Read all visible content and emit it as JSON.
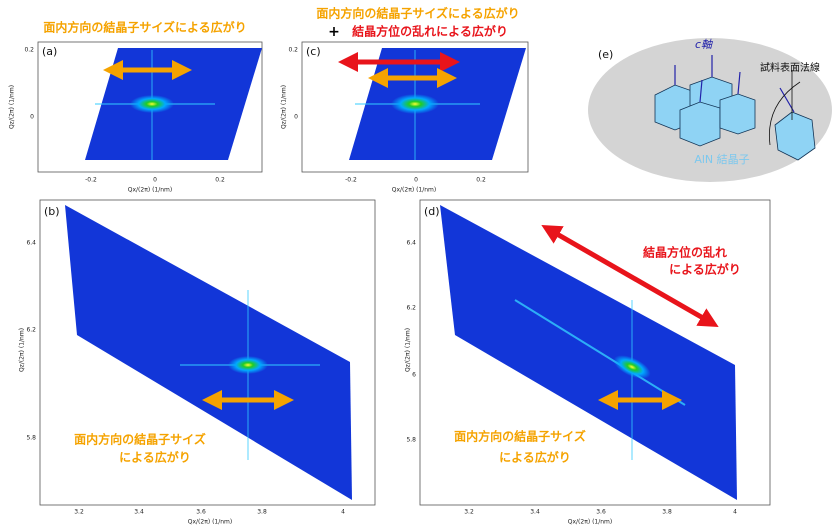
{
  "panel_a": {
    "title": "面内方向の結晶子サイズによる広がり",
    "label": "(a)",
    "xticks": [
      "-0.2",
      "0",
      "0.2"
    ],
    "yticks": [
      "0.2",
      "0"
    ],
    "xlabel": "Qx/(2π) (1/nm)",
    "ylabel": "Qz/(2π) (1/nm)"
  },
  "panel_c": {
    "title": "面内方向の結晶子サイズによる広がり",
    "plus": "+",
    "title2": "結晶方位の乱れによる広がり",
    "label": "(c)",
    "xticks": [
      "-0.2",
      "0",
      "0.2"
    ],
    "yticks": [
      "0.2",
      "0"
    ],
    "xlabel": "Qx/(2π) (1/nm)",
    "ylabel": "Qz/(2π) (1/nm)"
  },
  "panel_e": {
    "label": "(e)",
    "axis": "c軸",
    "normal": "試料表面法線",
    "crystal": "AlN 結晶子"
  },
  "panel_b": {
    "label": "(b)",
    "note_1": "面内方向の結晶子サイズ",
    "note_2": "による広がり",
    "xticks": [
      "3.2",
      "3.4",
      "3.6",
      "3.8",
      "4"
    ],
    "yticks": [
      "6.4",
      "6.2",
      "5.8"
    ],
    "xlabel": "Qx/(2π) (1/nm)",
    "ylabel": "Qz/(2π) (1/nm)"
  },
  "panel_d": {
    "label": "(d)",
    "note_1": "面内方向の結晶子サイズ",
    "note_2": "による広がり",
    "red_1": "結晶方位の乱れ",
    "red_2": "による広がり",
    "xticks": [
      "3.2",
      "3.4",
      "3.6",
      "3.8",
      "4"
    ],
    "yticks": [
      "6.4",
      "6.2",
      "6",
      "5.8"
    ],
    "xlabel": "Qx/(2π) (1/nm)",
    "ylabel": "Qz/(2π) (1/nm)"
  }
}
